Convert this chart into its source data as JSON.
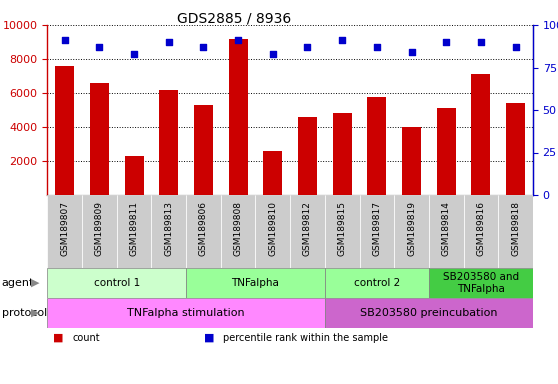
{
  "title": "GDS2885 / 8936",
  "samples": [
    "GSM189807",
    "GSM189809",
    "GSM189811",
    "GSM189813",
    "GSM189806",
    "GSM189808",
    "GSM189810",
    "GSM189812",
    "GSM189815",
    "GSM189817",
    "GSM189819",
    "GSM189814",
    "GSM189816",
    "GSM189818"
  ],
  "counts": [
    7600,
    6600,
    2300,
    6200,
    5300,
    9200,
    2600,
    4600,
    4850,
    5750,
    4000,
    5100,
    7100,
    5400
  ],
  "percentile_ranks": [
    91,
    87,
    83,
    90,
    87,
    91,
    83,
    87,
    91,
    87,
    84,
    90,
    90,
    87
  ],
  "bar_color": "#cc0000",
  "dot_color": "#0000cc",
  "ylim_left": [
    0,
    10000
  ],
  "ylim_right": [
    0,
    100
  ],
  "left_yticks": [
    2000,
    4000,
    6000,
    8000,
    10000
  ],
  "left_ytick_labels": [
    "2000",
    "4000",
    "6000",
    "8000",
    "10000"
  ],
  "right_yticks": [
    0,
    25,
    50,
    75,
    100
  ],
  "right_ytick_labels": [
    "0",
    "25",
    "50",
    "75",
    "100%"
  ],
  "agent_groups": [
    {
      "label": "control 1",
      "start": 0,
      "end": 4,
      "color": "#ccffcc"
    },
    {
      "label": "TNFalpha",
      "start": 4,
      "end": 8,
      "color": "#99ff99"
    },
    {
      "label": "control 2",
      "start": 8,
      "end": 11,
      "color": "#99ff99"
    },
    {
      "label": "SB203580 and\nTNFalpha",
      "start": 11,
      "end": 14,
      "color": "#44cc44"
    }
  ],
  "protocol_groups": [
    {
      "label": "TNFalpha stimulation",
      "start": 0,
      "end": 8,
      "color": "#ff88ff"
    },
    {
      "label": "SB203580 preincubation",
      "start": 8,
      "end": 14,
      "color": "#cc66cc"
    }
  ],
  "legend_items": [
    {
      "color": "#cc0000",
      "label": "count"
    },
    {
      "color": "#0000cc",
      "label": "percentile rank within the sample"
    }
  ],
  "bar_color_hex": "#cc0000",
  "dot_color_hex": "#0000cc",
  "left_axis_color": "#cc0000",
  "right_axis_color": "#0000cc",
  "grid_linestyle": "dotted",
  "grid_color": "black",
  "tick_label_bg": "#cccccc",
  "tick_label_color": "black",
  "title_fontsize": 10,
  "sample_fontsize": 6.5,
  "group_fontsize": 7.5,
  "legend_fontsize": 7
}
